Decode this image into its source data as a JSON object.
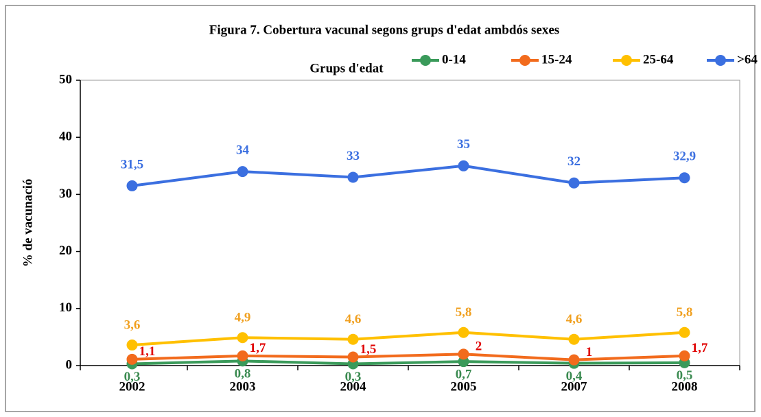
{
  "chart_data": {
    "type": "line",
    "title": "Figura 7. Cobertura vacunal segons grups d'edat ambdós sexes",
    "legend_title": "Grups d'edat",
    "y_label": "% de vacunació",
    "categories": [
      "2002",
      "2003",
      "2004",
      "2005",
      "2007",
      "2008"
    ],
    "series": [
      {
        "name": "0-14",
        "color": "#3a9a5a",
        "label_color": "#3a8a50",
        "values": [
          0.3,
          0.8,
          0.3,
          0.7,
          0.4,
          0.5
        ],
        "value_labels": [
          "0,3",
          "0,8",
          "0,3",
          "0,7",
          "0,4",
          "0,5"
        ]
      },
      {
        "name": "15-24",
        "color": "#f26b1d",
        "label_color": "#e00000",
        "values": [
          1.1,
          1.7,
          1.5,
          2,
          1,
          1.7
        ],
        "value_labels": [
          "1,1",
          "1,7",
          "1,5",
          "2",
          "1",
          "1,7"
        ]
      },
      {
        "name": "25-64",
        "color": "#ffc000",
        "label_color": "#f0a020",
        "values": [
          3.6,
          4.9,
          4.6,
          5.8,
          4.6,
          5.8
        ],
        "value_labels": [
          "3,6",
          "4,9",
          "4,6",
          "5,8",
          "4,6",
          "5,8"
        ]
      },
      {
        "name": ">64",
        "color": "#3b6fe0",
        "label_color": "#3b6fe0",
        "values": [
          31.5,
          34,
          33,
          35,
          32,
          32.9
        ],
        "value_labels": [
          "31,5",
          "34",
          "33",
          "35",
          "32",
          "32,9"
        ]
      }
    ],
    "ylim": [
      0,
      50
    ],
    "yticks": [
      0,
      10,
      20,
      30,
      40,
      50
    ],
    "grid": false,
    "legend": "top-right"
  }
}
